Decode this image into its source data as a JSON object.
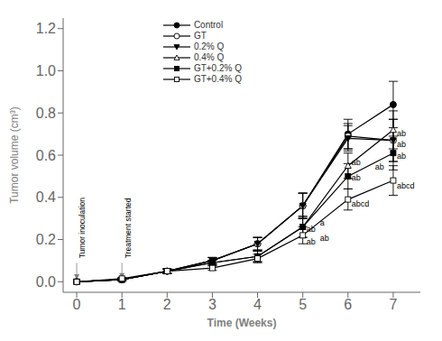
{
  "chart_data": {
    "type": "line",
    "x_label": "Time (Weeks)",
    "y_label": "Tumor volume (cm³)",
    "x": [
      0,
      1,
      2,
      3,
      4,
      5,
      6,
      7
    ],
    "xlim": [
      -0.3,
      7.6
    ],
    "xticks": [
      0,
      1,
      2,
      3,
      4,
      5,
      6,
      7
    ],
    "ylim": [
      -0.05,
      1.25
    ],
    "yticks": [
      {
        "value": 0.0,
        "label": "0.0"
      },
      0.2,
      0.4,
      0.6,
      0.8,
      {
        "value": 1.0,
        "label": "1.0"
      },
      1.2
    ],
    "legend": "upper left",
    "series": [
      {
        "name": "Control",
        "color": "black",
        "marker": "circle",
        "line_style": "solid",
        "values": [
          0.0,
          0.01,
          0.05,
          0.1,
          0.18,
          0.36,
          0.7,
          0.84
        ],
        "errors": [
          0.0,
          0.005,
          0.01,
          0.015,
          0.03,
          0.06,
          0.07,
          0.11
        ]
      },
      {
        "name": "GT",
        "color": "black",
        "marker": "circle_open",
        "line_style": "solid",
        "values": [
          0.0,
          0.01,
          0.05,
          0.1,
          0.18,
          0.36,
          0.69,
          0.67
        ],
        "errors": [
          0.0,
          0.005,
          0.01,
          0.015,
          0.03,
          0.06,
          0.06,
          0.1
        ]
      },
      {
        "name": "0.2% Q",
        "color": "black",
        "marker": "triangle_down",
        "line_style": "solid",
        "values": [
          0.0,
          0.01,
          0.05,
          0.1,
          0.18,
          0.36,
          0.68,
          0.67
        ],
        "errors": [
          0.0,
          0.005,
          0.01,
          0.015,
          0.03,
          0.06,
          0.06,
          0.1
        ]
      },
      {
        "name": "0.4% Q",
        "color": "black",
        "marker": "triangle_up_open",
        "line_style": "solid",
        "values": [
          0.0,
          0.01,
          0.05,
          0.09,
          0.12,
          0.26,
          0.55,
          0.72
        ],
        "errors": [
          0.0,
          0.005,
          0.01,
          0.012,
          0.025,
          0.05,
          0.06,
          0.09
        ]
      },
      {
        "name": "GT+0.2% Q",
        "color": "black",
        "marker": "square",
        "line_style": "solid",
        "values": [
          0.0,
          0.01,
          0.05,
          0.09,
          0.12,
          0.26,
          0.5,
          0.61
        ],
        "errors": [
          0.0,
          0.005,
          0.01,
          0.012,
          0.025,
          0.05,
          0.06,
          0.08
        ]
      },
      {
        "name": "GT+0.4% Q",
        "color": "black",
        "marker": "square_open",
        "line_style": "solid",
        "values": [
          0.0,
          0.015,
          0.05,
          0.065,
          0.11,
          0.22,
          0.39,
          0.48
        ],
        "errors": [
          0.0,
          0.005,
          0.01,
          0.01,
          0.02,
          0.04,
          0.05,
          0.07
        ]
      }
    ],
    "annotations": [
      {
        "text": "ab",
        "x": 5,
        "y": 0.245
      },
      {
        "text": "a",
        "x": 5,
        "y": 0.275
      },
      {
        "text": "ab",
        "x": 5,
        "y": 0.205
      },
      {
        "text": "ab",
        "x": 5,
        "y": 0.185
      },
      {
        "text": "ab",
        "x": 6,
        "y": 0.565
      },
      {
        "text": "ab",
        "x": 6,
        "y": 0.49
      },
      {
        "text": "ab",
        "x": 6,
        "y": 0.54
      },
      {
        "text": "abcd",
        "x": 6,
        "y": 0.365
      },
      {
        "text": "ab",
        "x": 7,
        "y": 0.65
      },
      {
        "text": "ab",
        "x": 7,
        "y": 0.595
      },
      {
        "text": "ab",
        "x": 7,
        "y": 0.7
      },
      {
        "text": "abcd",
        "x": 7,
        "y": 0.452
      }
    ],
    "arrows": [
      {
        "text": "Tumor inoculation",
        "x": 0,
        "y": 0.09,
        "arrow_to": 0.01
      },
      {
        "text": "Treatment started",
        "x": 1,
        "y": 0.09,
        "arrow_to": 0.015
      }
    ]
  }
}
